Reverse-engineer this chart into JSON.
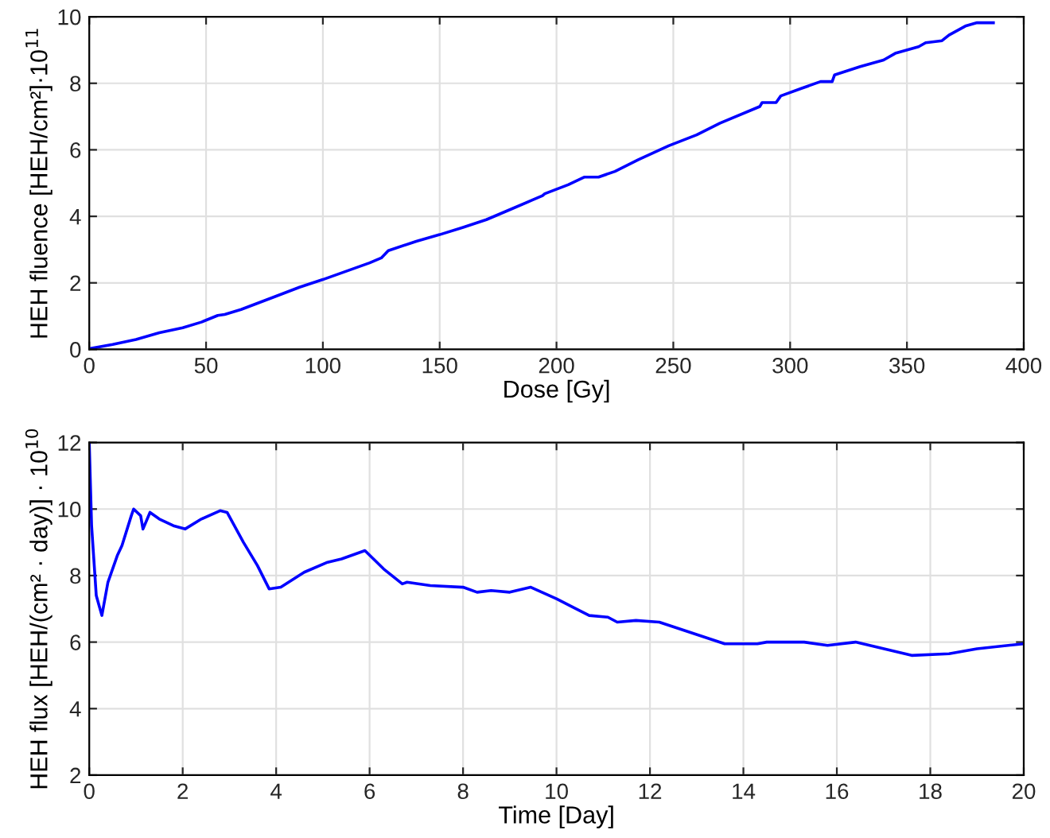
{
  "chart_data": [
    {
      "type": "line",
      "xlabel": "Dose [Gy]",
      "ylabel": "HEH fluence [HEH/cm²]·10$^{11}$",
      "xlim": [
        0,
        400
      ],
      "xticks": [
        0,
        50,
        100,
        150,
        200,
        250,
        300,
        350,
        400
      ],
      "ylim": [
        0,
        10
      ],
      "yticks": [
        0,
        2,
        4,
        6,
        8,
        10
      ],
      "grid": true,
      "series": [
        {
          "color": "#0000ff",
          "x": [
            0,
            10,
            20,
            30,
            40,
            48,
            55,
            58,
            65,
            80,
            90,
            100,
            110,
            120,
            125,
            128,
            140,
            150,
            160,
            170,
            180,
            190,
            194,
            195,
            205,
            212,
            218,
            225,
            235,
            248,
            260,
            270,
            287,
            288,
            294,
            296,
            305,
            313,
            318,
            319,
            330,
            340,
            345,
            355,
            358,
            365,
            368,
            375,
            380,
            387
          ],
          "values": [
            0.02,
            0.15,
            0.3,
            0.5,
            0.65,
            0.82,
            1.02,
            1.05,
            1.2,
            1.6,
            1.87,
            2.1,
            2.35,
            2.6,
            2.75,
            2.97,
            3.25,
            3.45,
            3.67,
            3.9,
            4.2,
            4.5,
            4.62,
            4.68,
            4.95,
            5.18,
            5.18,
            5.35,
            5.7,
            6.12,
            6.45,
            6.8,
            7.3,
            7.42,
            7.42,
            7.62,
            7.85,
            8.05,
            8.05,
            8.25,
            8.5,
            8.7,
            8.9,
            9.1,
            9.22,
            9.28,
            9.45,
            9.72,
            9.82,
            9.82
          ]
        }
      ]
    },
    {
      "type": "line",
      "xlabel": "Time [Day]",
      "ylabel": "HEH flux [HEH/(cm² · day)] · 10$^{10}$",
      "xlim": [
        0,
        20
      ],
      "xticks": [
        0,
        2,
        4,
        6,
        8,
        10,
        12,
        14,
        16,
        18,
        20
      ],
      "ylim": [
        2,
        12
      ],
      "yticks": [
        2,
        4,
        6,
        8,
        10,
        12
      ],
      "grid": true,
      "series": [
        {
          "color": "#0000ff",
          "x": [
            0,
            0.05,
            0.15,
            0.27,
            0.4,
            0.6,
            0.7,
            0.9,
            0.95,
            1.1,
            1.15,
            1.3,
            1.5,
            1.8,
            2.05,
            2.4,
            2.8,
            2.95,
            3.3,
            3.6,
            3.85,
            4.1,
            4.6,
            5.1,
            5.4,
            5.9,
            6.3,
            6.7,
            6.8,
            7.3,
            8,
            8.3,
            8.6,
            9.0,
            9.45,
            10.0,
            10.7,
            11.1,
            11.3,
            11.7,
            12.2,
            13.6,
            14.3,
            14.5,
            15.3,
            15.8,
            16.4,
            17.6,
            18.4,
            19.0,
            20
          ],
          "values": [
            12,
            9.5,
            7.4,
            6.8,
            7.8,
            8.6,
            8.9,
            9.8,
            10,
            9.8,
            9.4,
            9.9,
            9.7,
            9.5,
            9.4,
            9.7,
            9.95,
            9.9,
            9.0,
            8.3,
            7.6,
            7.65,
            8.1,
            8.4,
            8.5,
            8.75,
            8.2,
            7.75,
            7.8,
            7.7,
            7.65,
            7.5,
            7.55,
            7.5,
            7.65,
            7.3,
            6.8,
            6.75,
            6.6,
            6.65,
            6.6,
            5.95,
            5.95,
            6.0,
            6.0,
            5.9,
            6.0,
            5.6,
            5.65,
            5.8,
            5.95
          ]
        }
      ]
    }
  ]
}
